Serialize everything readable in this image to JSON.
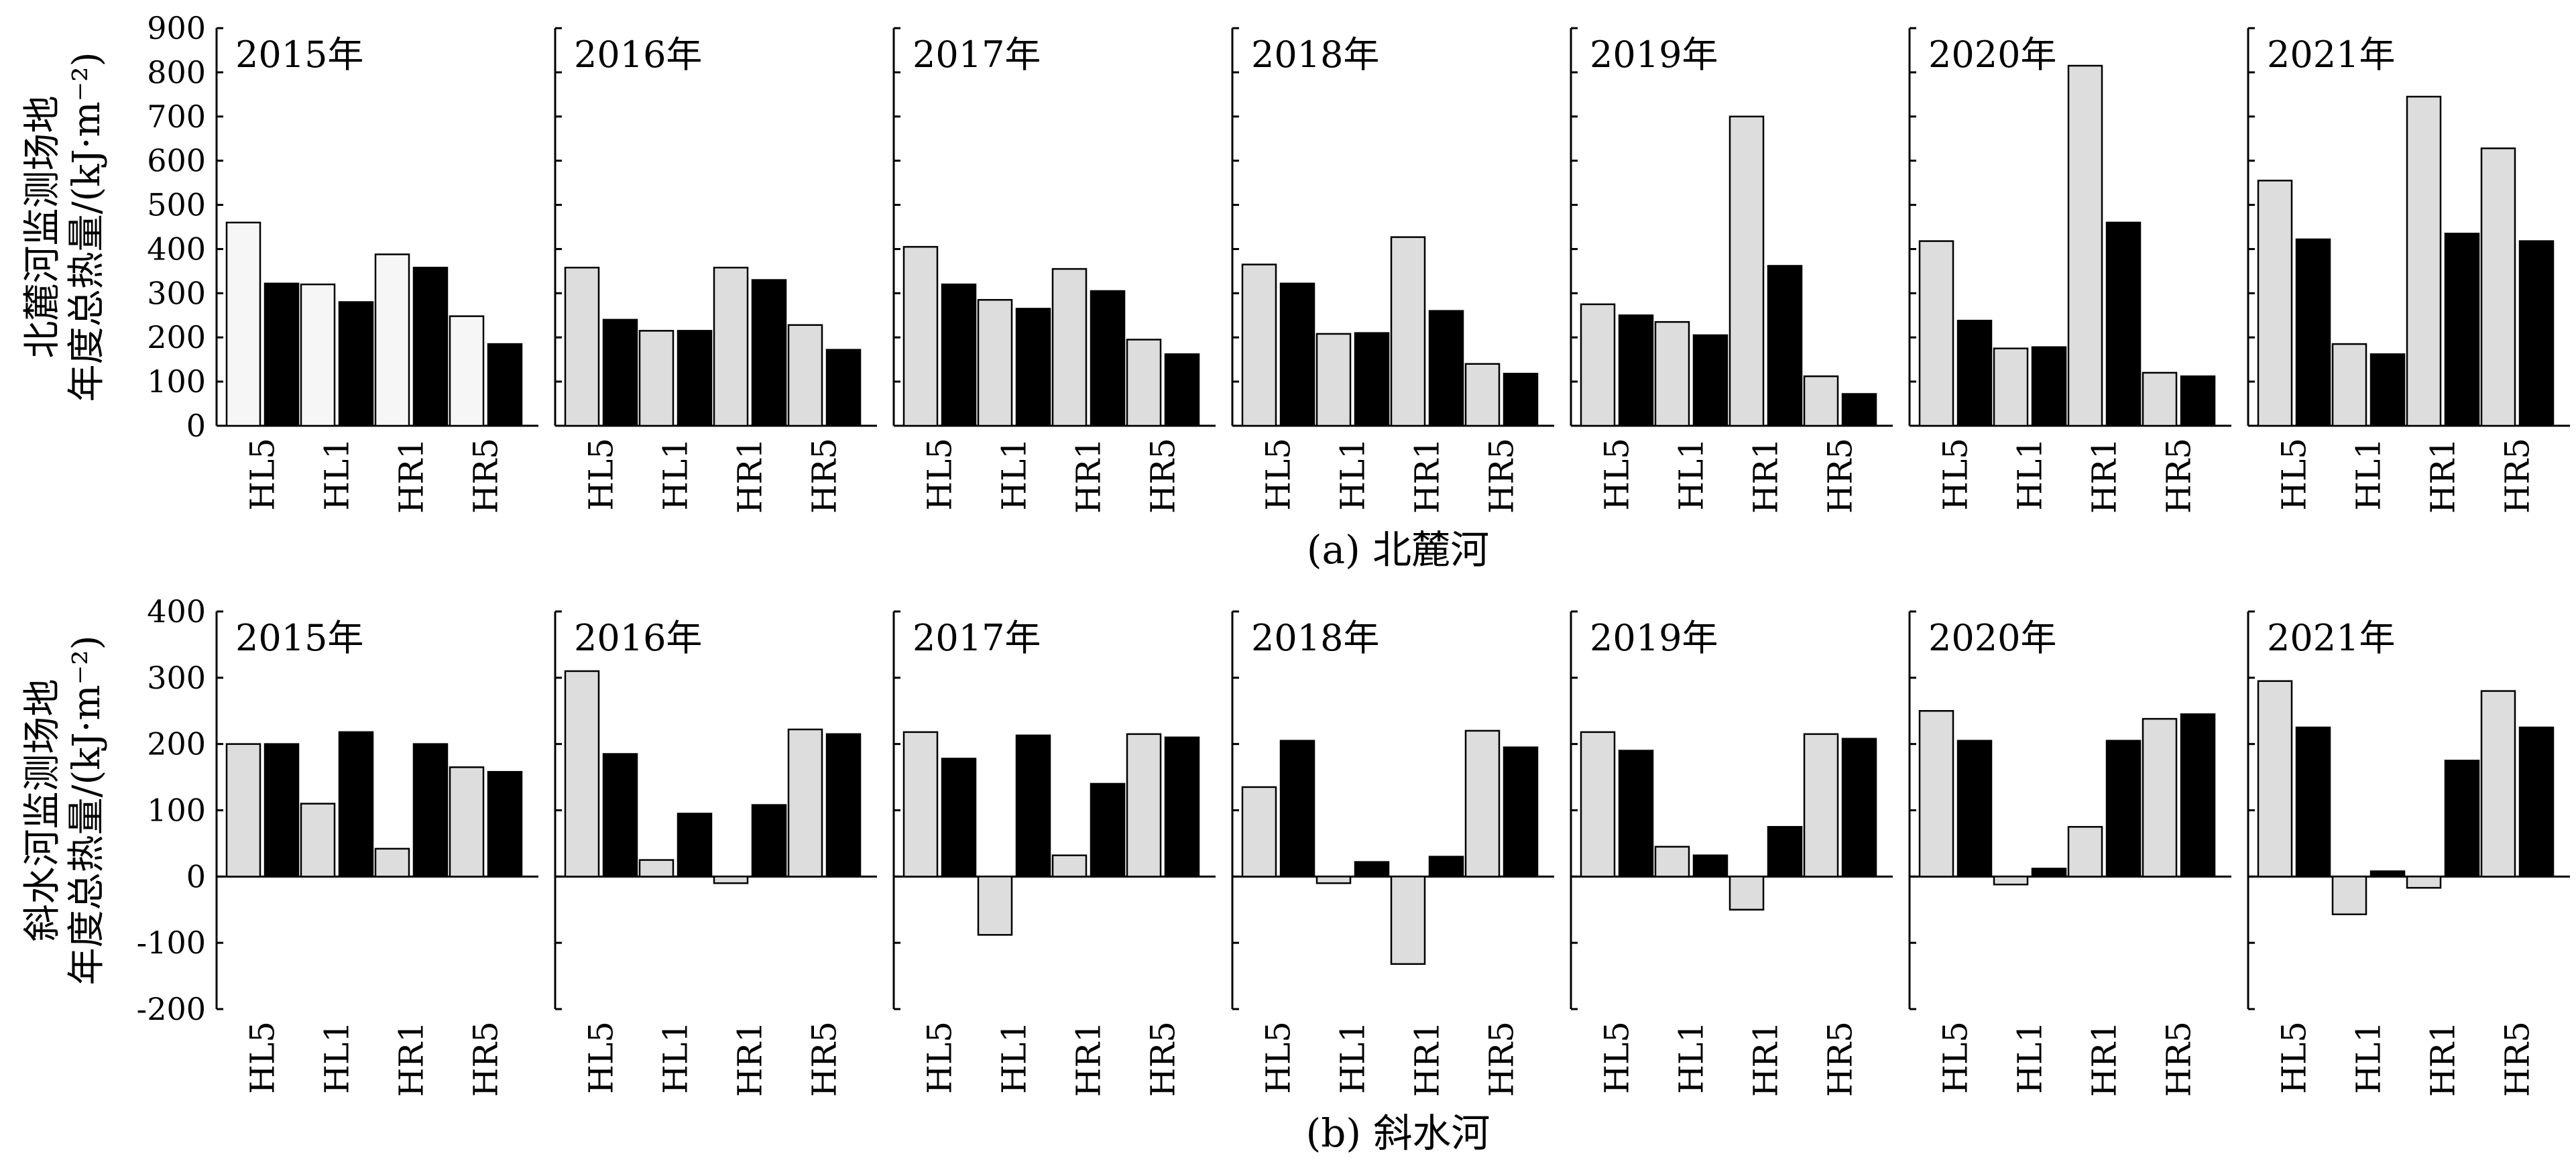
{
  "chart_data": [
    {
      "type": "bar",
      "caption": "(a) 北麓河",
      "ylabel_line1": "北麓河监测场地",
      "ylabel_line2": "年度总热量/(kJ·m⁻²)",
      "ylim": [
        0,
        900
      ],
      "yticks": [
        0,
        100,
        200,
        300,
        400,
        500,
        600,
        700,
        800,
        900
      ],
      "categories": [
        "HL5",
        "HL1",
        "HR1",
        "HR5"
      ],
      "colors": {
        "light": "#dddddd",
        "dark": "#000000",
        "light_2015": "#f6f6f6"
      },
      "panels": [
        {
          "year": "2015年",
          "light": [
            460,
            320,
            388,
            248
          ],
          "dark": [
            322,
            280,
            358,
            185
          ]
        },
        {
          "year": "2016年",
          "light": [
            358,
            215,
            358,
            228
          ],
          "dark": [
            240,
            215,
            330,
            172
          ]
        },
        {
          "year": "2017年",
          "light": [
            405,
            285,
            355,
            195
          ],
          "dark": [
            320,
            265,
            305,
            162
          ]
        },
        {
          "year": "2018年",
          "light": [
            365,
            208,
            427,
            140
          ],
          "dark": [
            322,
            210,
            260,
            118
          ]
        },
        {
          "year": "2019年",
          "light": [
            275,
            235,
            700,
            112
          ],
          "dark": [
            250,
            205,
            362,
            72
          ]
        },
        {
          "year": "2020年",
          "light": [
            418,
            175,
            815,
            120
          ],
          "dark": [
            238,
            178,
            460,
            112
          ]
        },
        {
          "year": "2021年",
          "light": [
            555,
            185,
            745,
            628
          ],
          "dark": [
            422,
            162,
            435,
            418
          ]
        }
      ]
    },
    {
      "type": "bar",
      "caption": "(b) 斜水河",
      "ylabel_line1": "斜水河监测场地",
      "ylabel_line2": "年度总热量/(kJ·m⁻²)",
      "ylim": [
        -200,
        400
      ],
      "yticks": [
        -200,
        -100,
        0,
        100,
        200,
        300,
        400
      ],
      "categories": [
        "HL5",
        "HL1",
        "HR1",
        "HR5"
      ],
      "colors": {
        "light": "#dddddd",
        "dark": "#000000",
        "light_2015": "#dddddd"
      },
      "panels": [
        {
          "year": "2015年",
          "light": [
            200,
            110,
            42,
            165
          ],
          "dark": [
            200,
            218,
            200,
            158
          ]
        },
        {
          "year": "2016年",
          "light": [
            310,
            25,
            -10,
            222
          ],
          "dark": [
            185,
            95,
            108,
            215
          ]
        },
        {
          "year": "2017年",
          "light": [
            218,
            -88,
            32,
            215
          ],
          "dark": [
            178,
            213,
            140,
            210
          ]
        },
        {
          "year": "2018年",
          "light": [
            135,
            -10,
            -132,
            220
          ],
          "dark": [
            205,
            22,
            30,
            195
          ]
        },
        {
          "year": "2019年",
          "light": [
            218,
            45,
            -50,
            215
          ],
          "dark": [
            190,
            32,
            75,
            208
          ]
        },
        {
          "year": "2020年",
          "light": [
            250,
            -12,
            75,
            238
          ],
          "dark": [
            205,
            12,
            205,
            245
          ]
        },
        {
          "year": "2021年",
          "light": [
            295,
            -57,
            -17,
            280
          ],
          "dark": [
            225,
            8,
            175,
            225
          ]
        }
      ]
    }
  ]
}
